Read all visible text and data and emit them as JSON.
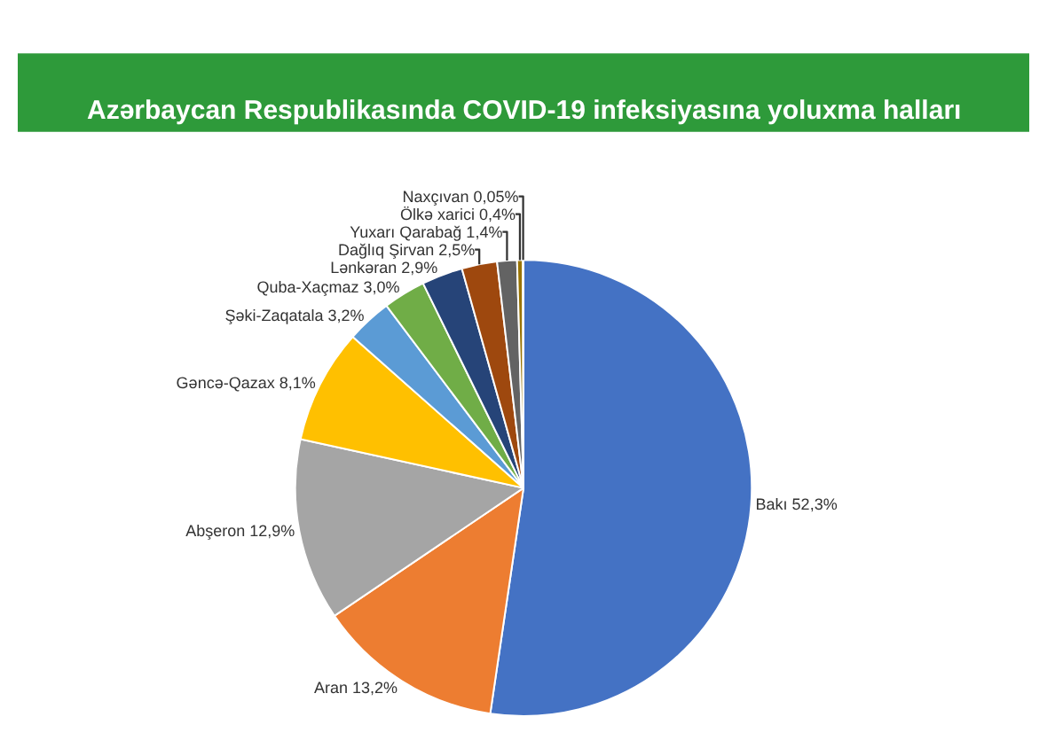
{
  "chart_data": {
    "type": "pie",
    "title": "Azərbaycan Respublikasında COVID-19 infeksiyasına yoluxma halları",
    "categories": [
      "Bakı",
      "Aran",
      "Abşeron",
      "Gəncə-Qazax",
      "Şəki-Zaqatala",
      "Quba-Xaçmaz",
      "Lənkəran",
      "Dağlıq Şirvan",
      "Yuxarı Qarabağ",
      "Ölkə xarici",
      "Naxçıvan"
    ],
    "values": [
      52.3,
      13.2,
      12.9,
      8.1,
      3.2,
      3.0,
      2.9,
      2.5,
      1.4,
      0.4,
      0.05
    ],
    "value_labels": [
      "52,3%",
      "13,2%",
      "12,9%",
      "8,1%",
      "3,2%",
      "3,0%",
      "2,9%",
      "2,5%",
      "1,4%",
      "0,4%",
      "0,05%"
    ],
    "colors": [
      "#4472c4",
      "#ed7d31",
      "#a5a5a5",
      "#ffc000",
      "#5b9bd5",
      "#70ad47",
      "#264478",
      "#9e480e",
      "#636363",
      "#997300",
      "#255e91"
    ],
    "legend": false
  }
}
